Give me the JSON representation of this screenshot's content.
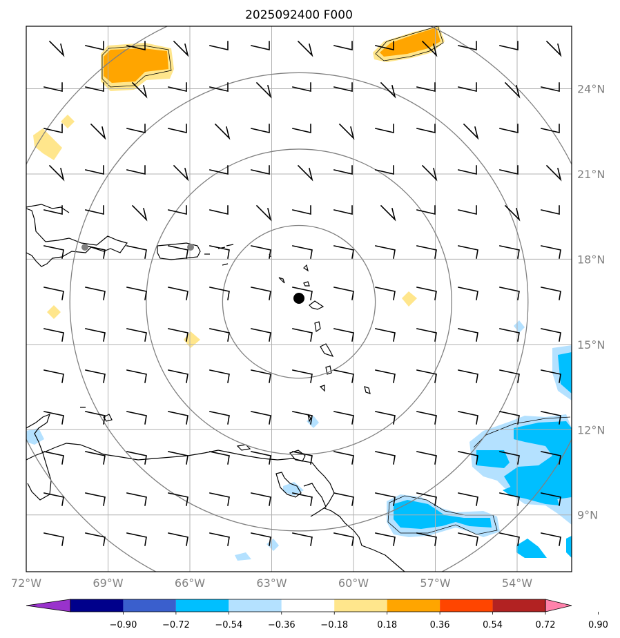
{
  "title": "2025092400 F000",
  "map": {
    "lon_range": [
      -72,
      -52
    ],
    "lat_range": [
      7,
      26.2
    ],
    "lon_ticks": [
      {
        "value": -72,
        "label": "72°W"
      },
      {
        "value": -69,
        "label": "69°W"
      },
      {
        "value": -66,
        "label": "66°W"
      },
      {
        "value": -63,
        "label": "63°W"
      },
      {
        "value": -60,
        "label": "60°W"
      },
      {
        "value": -57,
        "label": "57°W"
      },
      {
        "value": -54,
        "label": "54°W"
      }
    ],
    "lat_ticks": [
      {
        "value": 9,
        "label": "9°N"
      },
      {
        "value": 12,
        "label": "12°N"
      },
      {
        "value": 15,
        "label": "15°N"
      },
      {
        "value": 18,
        "label": "18°N"
      },
      {
        "value": 21,
        "label": "21°N"
      },
      {
        "value": 24,
        "label": "24°N"
      }
    ],
    "center": {
      "lon": -62,
      "lat": 16.5
    },
    "range_rings_deg": [
      2.8,
      5.6,
      8.4,
      11.2
    ],
    "colors": {
      "pos_018_036": "#ffe68c",
      "pos_036_054": "#ffa500",
      "neg_018_036": "#b4e1ff",
      "neg_036_054": "#00bfff"
    }
  },
  "colorbar": {
    "bins": [
      "#9932cc",
      "#00008b",
      "#3a5fcd",
      "#00bfff",
      "#b4e1ff",
      "#ffffff",
      "#ffe68c",
      "#ffa500",
      "#ff4500",
      "#b22222",
      "#ff82ab"
    ],
    "tick_labels": [
      "−0.90",
      "−0.72",
      "−0.54",
      "−0.36",
      "−0.18",
      "0.18",
      "0.36",
      "0.54",
      "0.72",
      "0.90"
    ]
  }
}
